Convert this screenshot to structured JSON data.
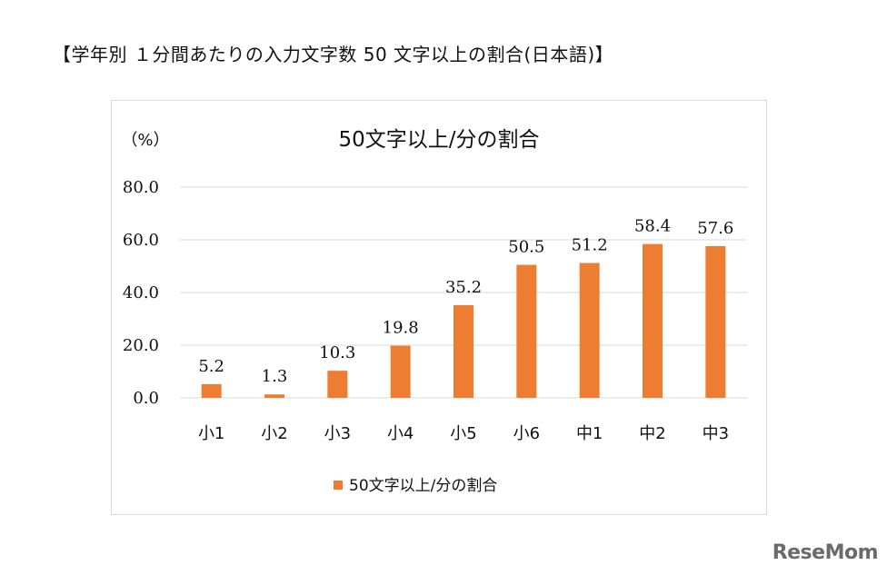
{
  "page": {
    "heading": "【学年別 １分間あたりの入力文字数 50 文字以上の割合(日本語)】",
    "watermark": "ReseMom"
  },
  "chart_data": {
    "type": "bar",
    "title": "50文字以上/分の割合",
    "ylabel": "（%）",
    "xlabel": "",
    "categories": [
      "小1",
      "小2",
      "小3",
      "小4",
      "小5",
      "小6",
      "中1",
      "中2",
      "中3"
    ],
    "series": [
      {
        "name": "50文字以上/分の割合",
        "values": [
          5.2,
          1.3,
          10.3,
          19.8,
          35.2,
          50.5,
          51.2,
          58.4,
          57.6
        ],
        "value_labels": [
          "5.2",
          "1.3",
          "10.3",
          "19.8",
          "35.2",
          "50.5",
          "51.2",
          "58.4",
          "57.6"
        ],
        "color": "#ED7D31"
      }
    ],
    "ylim": [
      0,
      80
    ],
    "yticks": [
      0,
      20,
      40,
      60,
      80
    ],
    "ytick_labels": [
      "0.0",
      "20.0",
      "40.0",
      "60.0",
      "80.0"
    ],
    "grid": true,
    "legend": "bottom",
    "colors": {
      "bar": "#ED7D31",
      "grid": "#d9d9d9",
      "text": "#111111"
    }
  }
}
